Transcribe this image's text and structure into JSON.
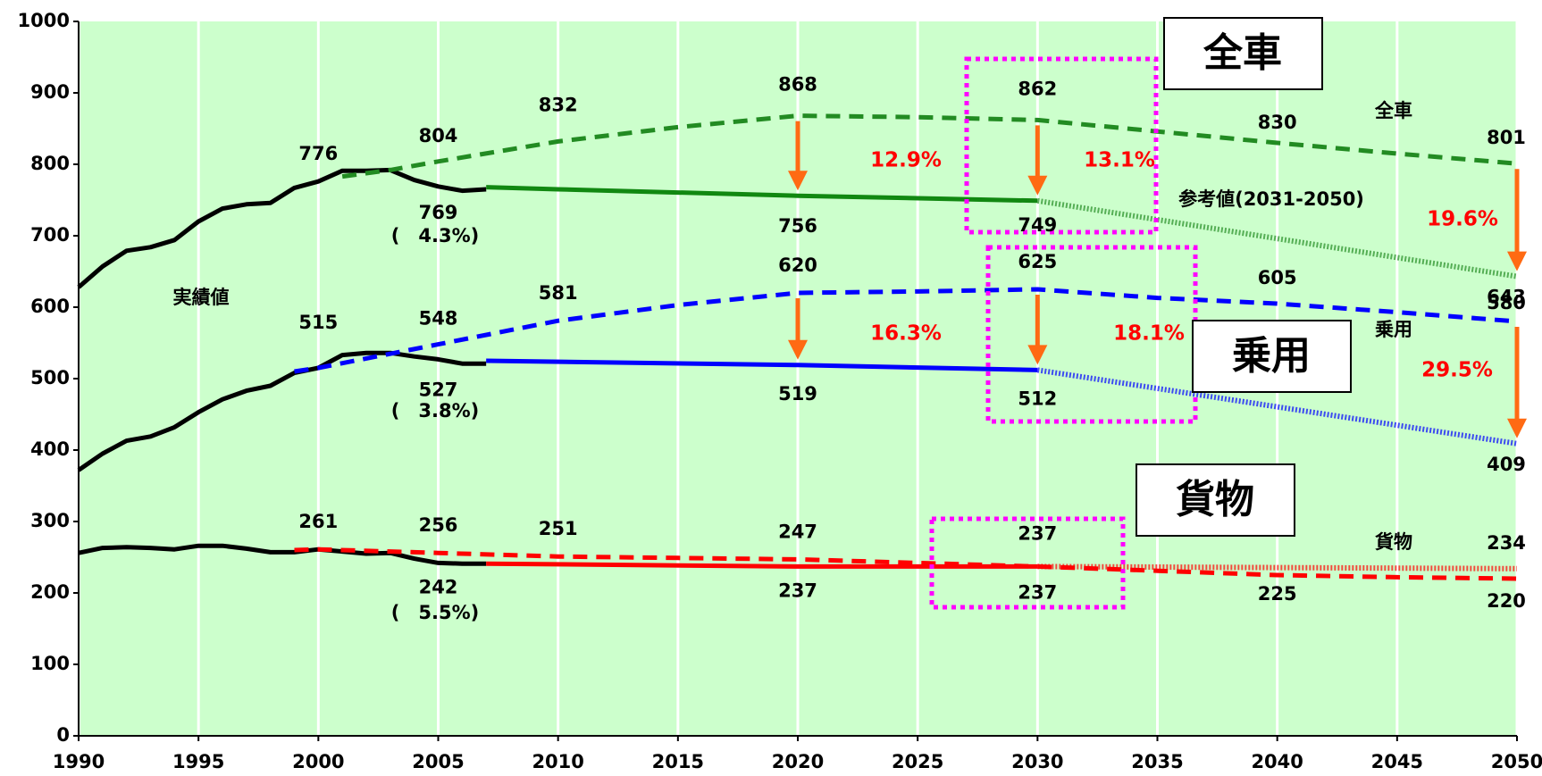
{
  "chart_data": {
    "type": "line",
    "xlim": [
      1990,
      2050
    ],
    "xticks": [
      1990,
      1995,
      2000,
      2005,
      2010,
      2015,
      2020,
      2025,
      2030,
      2035,
      2040,
      2045,
      2050
    ],
    "ylim": [
      0,
      1000
    ],
    "yticks": [
      0,
      100,
      200,
      300,
      400,
      500,
      600,
      700,
      800,
      900,
      1000
    ],
    "grid": true,
    "series": [
      {
        "color": "#000000",
        "style": "solid",
        "x": [
          1990,
          1991,
          1992,
          1993,
          1994,
          1995,
          1996,
          1997,
          1998,
          1999,
          2000,
          2001,
          2002,
          2003,
          2004,
          2005,
          2006,
          2007
        ],
        "values": [
          628,
          657,
          679,
          684,
          694,
          720,
          738,
          744,
          746,
          767,
          776,
          791,
          791,
          792,
          778,
          769,
          763,
          765
        ]
      },
      {
        "color": "#000000",
        "style": "solid",
        "x": [
          1990,
          1991,
          1992,
          1993,
          1994,
          1995,
          1996,
          1997,
          1998,
          1999,
          2000,
          2001,
          2002,
          2003,
          2004,
          2005,
          2006,
          2007
        ],
        "values": [
          372,
          395,
          413,
          419,
          432,
          453,
          471,
          483,
          490,
          508,
          515,
          533,
          536,
          536,
          531,
          527,
          521,
          521
        ]
      },
      {
        "color": "#000000",
        "style": "solid",
        "x": [
          1990,
          1991,
          1992,
          1993,
          1994,
          1995,
          1996,
          1997,
          1998,
          1999,
          2000,
          2001,
          2002,
          2003,
          2004,
          2005,
          2006,
          2007
        ],
        "values": [
          256,
          263,
          264,
          263,
          261,
          266,
          266,
          262,
          257,
          257,
          261,
          258,
          255,
          256,
          248,
          242,
          241,
          241
        ]
      },
      {
        "color": "#228b22",
        "style": "dashed",
        "x": [
          2001,
          2003,
          2005,
          2010,
          2015,
          2020,
          2025,
          2030,
          2035,
          2040,
          2045,
          2050
        ],
        "values": [
          783,
          792,
          804,
          832,
          852,
          868,
          866,
          862,
          846,
          830,
          815,
          801
        ]
      },
      {
        "color": "#0000ff",
        "style": "dashed",
        "x": [
          1999,
          2000,
          2005,
          2010,
          2015,
          2020,
          2025,
          2030,
          2035,
          2040,
          2045,
          2050
        ],
        "values": [
          510,
          515,
          548,
          581,
          603,
          620,
          622,
          625,
          613,
          605,
          593,
          580
        ]
      },
      {
        "color": "#ff0000",
        "style": "dashed",
        "x": [
          1999,
          2000,
          2005,
          2010,
          2015,
          2020,
          2025,
          2030,
          2035,
          2040,
          2045,
          2050
        ],
        "values": [
          260,
          261,
          256,
          251,
          249,
          247,
          242,
          237,
          231,
          225,
          222,
          220
        ]
      },
      {
        "color": "#118811",
        "style": "solid",
        "x": [
          2007,
          2010,
          2020,
          2030
        ],
        "values": [
          768,
          765,
          756,
          749
        ]
      },
      {
        "color": "#0000ff",
        "style": "solid",
        "x": [
          2007,
          2020,
          2030
        ],
        "values": [
          525,
          519,
          512
        ]
      },
      {
        "color": "#ff0000",
        "style": "solid",
        "x": [
          2007,
          2020,
          2030
        ],
        "values": [
          241,
          237,
          237
        ]
      },
      {
        "color": "#228b22",
        "style": "hatched",
        "x": [
          2030,
          2050
        ],
        "values": [
          749,
          643
        ]
      },
      {
        "color": "#0000ff",
        "style": "hatched",
        "x": [
          2030,
          2050
        ],
        "values": [
          512,
          409
        ]
      },
      {
        "color": "#ff0000",
        "style": "hatched",
        "x": [
          2030,
          2050
        ],
        "values": [
          237,
          234
        ]
      }
    ],
    "annotations": [
      "12.9%",
      "13.1%",
      "16.3%",
      "18.1%",
      "19.6%",
      "29.5%",
      "(　4.3%)",
      "(　3.8%)",
      "(　5.5%)",
      "実績値",
      "参考値(2031-2050)",
      "全車",
      "乗用",
      "貨物"
    ],
    "boxes": [
      "全車",
      "乗用",
      "貨物"
    ]
  }
}
